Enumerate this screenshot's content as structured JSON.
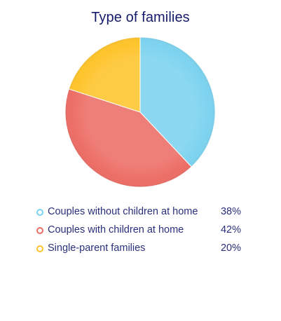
{
  "chart_data": {
    "type": "pie",
    "title": "Type of families",
    "slices": [
      {
        "label": "Couples without children at home",
        "value": 38,
        "value_label": "38%",
        "color": "#7dd3ef"
      },
      {
        "label": "Couples with children at home",
        "value": 42,
        "value_label": "42%",
        "color": "#ec6e66"
      },
      {
        "label": "Single-parent families",
        "value": 20,
        "value_label": "20%",
        "color": "#fec42c"
      }
    ],
    "legend_position": "bottom"
  }
}
